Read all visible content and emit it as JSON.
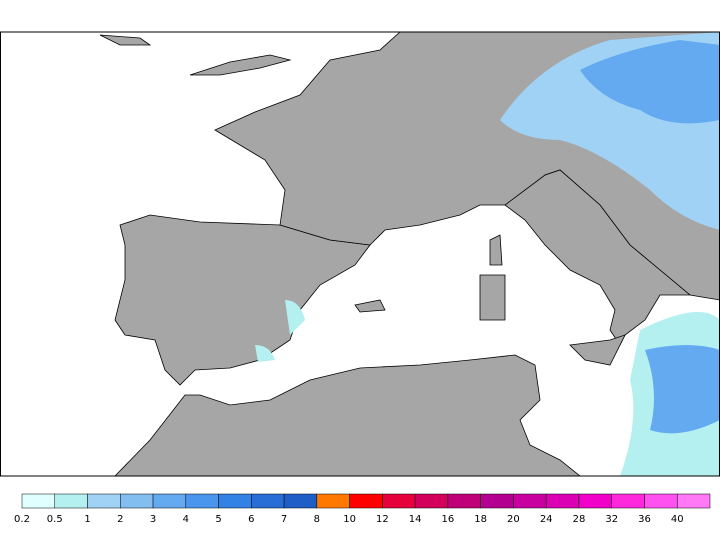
{
  "colorbar": {
    "labels": [
      "0.2",
      "0.5",
      "1",
      "2",
      "3",
      "4",
      "5",
      "6",
      "7",
      "8",
      "10",
      "12",
      "14",
      "16",
      "18",
      "20",
      "24",
      "28",
      "32",
      "36",
      "40"
    ],
    "colors": [
      "#e0ffff",
      "#b4f0f0",
      "#a0d2f5",
      "#82bef0",
      "#64aaf0",
      "#4a96ee",
      "#3282e6",
      "#286ed6",
      "#1e5ec6",
      "#ff7800",
      "#ff0000",
      "#e6003c",
      "#d2005a",
      "#c00078",
      "#b40090",
      "#c800a0",
      "#dc00b4",
      "#f000c8",
      "#ff28dc",
      "#ff50f0",
      "#ff78f5"
    ]
  }
}
